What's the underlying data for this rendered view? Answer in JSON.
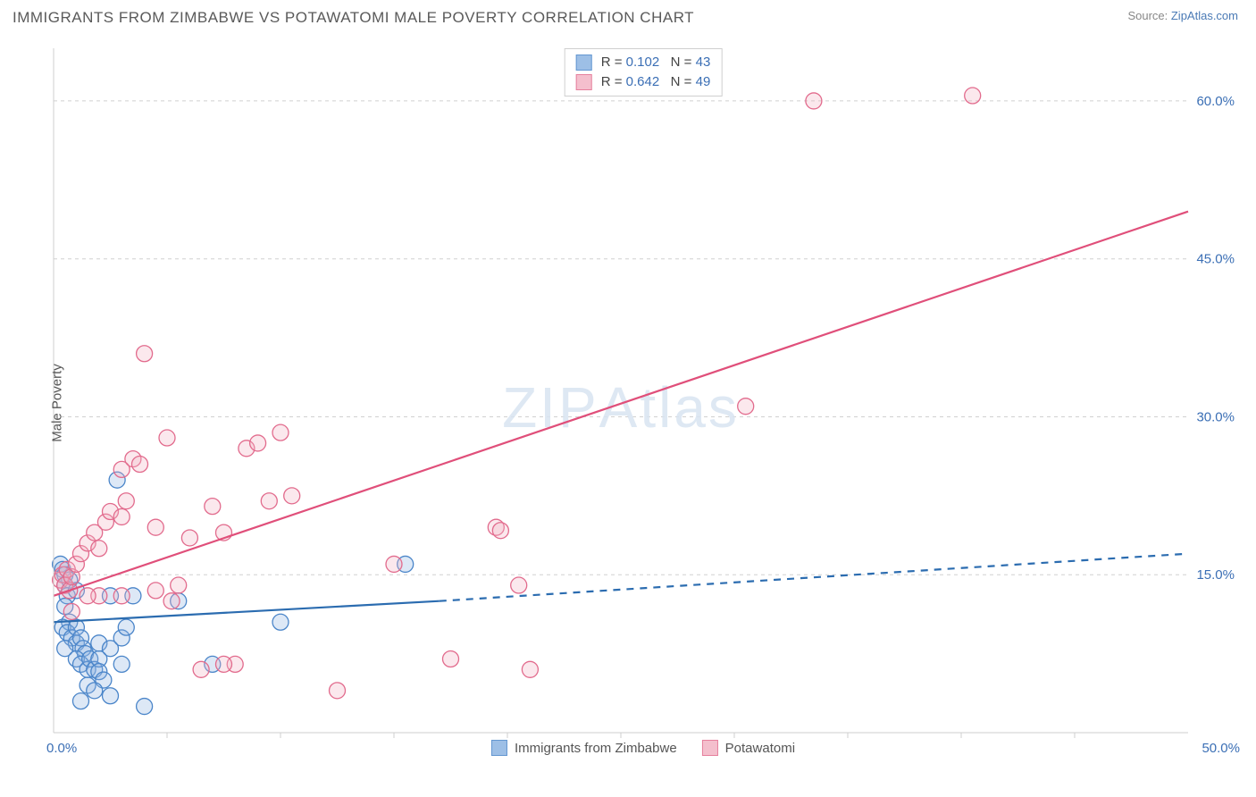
{
  "header": {
    "title": "IMMIGRANTS FROM ZIMBABWE VS POTAWATOMI MALE POVERTY CORRELATION CHART",
    "source_prefix": "Source: ",
    "source_link": "ZipAtlas.com"
  },
  "chart": {
    "type": "scatter",
    "ylabel": "Male Poverty",
    "watermark_bold": "ZIP",
    "watermark_thin": "Atlas",
    "background_color": "#ffffff",
    "grid_color": "#d0d0d0",
    "axis_color": "#cfcfcf",
    "tick_label_color": "#3b6fb5",
    "xlim": [
      0,
      50
    ],
    "ylim": [
      0,
      65
    ],
    "yticks": [
      15,
      30,
      45,
      60
    ],
    "ytick_labels": [
      "15.0%",
      "30.0%",
      "45.0%",
      "60.0%"
    ],
    "xtick_origin": "0.0%",
    "xtick_max": "50.0%",
    "x_minor_tick_step": 5,
    "marker_radius": 9,
    "marker_fill_opacity": 0.3,
    "marker_stroke_width": 1.3,
    "series": [
      {
        "key": "zimbabwe",
        "label": "Immigrants from Zimbabwe",
        "color_fill": "#8db4e2",
        "color_stroke": "#4a85c9",
        "line_color": "#2b6cb0",
        "line_width": 2.2,
        "regression": {
          "x1": 0,
          "y1": 10.5,
          "x2": 17,
          "y2": 12.5,
          "dash_to_x": 50,
          "dash_to_y": 17.0
        },
        "points": [
          [
            0.3,
            16
          ],
          [
            0.4,
            15.5
          ],
          [
            0.5,
            15
          ],
          [
            0.5,
            14
          ],
          [
            0.6,
            13
          ],
          [
            0.7,
            14.5
          ],
          [
            0.5,
            12
          ],
          [
            0.7,
            10.5
          ],
          [
            0.4,
            10
          ],
          [
            0.6,
            9.5
          ],
          [
            0.8,
            9
          ],
          [
            1.0,
            8.5
          ],
          [
            1.0,
            10
          ],
          [
            1.2,
            9
          ],
          [
            1.3,
            8
          ],
          [
            1.4,
            7.5
          ],
          [
            1.0,
            7
          ],
          [
            1.2,
            6.5
          ],
          [
            1.5,
            6
          ],
          [
            1.6,
            7
          ],
          [
            1.8,
            6
          ],
          [
            2.0,
            7
          ],
          [
            2.0,
            5.8
          ],
          [
            2.2,
            5
          ],
          [
            1.5,
            4.5
          ],
          [
            1.8,
            4
          ],
          [
            2.5,
            3.5
          ],
          [
            1.2,
            3
          ],
          [
            2.0,
            8.5
          ],
          [
            2.5,
            8
          ],
          [
            3.0,
            9
          ],
          [
            3.2,
            10
          ],
          [
            3.5,
            13
          ],
          [
            4.0,
            2.5
          ],
          [
            2.8,
            24
          ],
          [
            5.5,
            12.5
          ],
          [
            7.0,
            6.5
          ],
          [
            10.0,
            10.5
          ],
          [
            15.5,
            16
          ],
          [
            3.0,
            6.5
          ],
          [
            1.0,
            13.5
          ],
          [
            0.5,
            8
          ],
          [
            2.5,
            13
          ]
        ]
      },
      {
        "key": "potawatomi",
        "label": "Potawatomi",
        "color_fill": "#f3b4c5",
        "color_stroke": "#e26b8d",
        "line_color": "#e04f7a",
        "line_width": 2.2,
        "regression": {
          "x1": 0,
          "y1": 13.0,
          "x2": 50,
          "y2": 49.5
        },
        "points": [
          [
            0.3,
            14.5
          ],
          [
            0.4,
            15
          ],
          [
            0.5,
            14
          ],
          [
            0.6,
            15.5
          ],
          [
            0.7,
            13.5
          ],
          [
            0.8,
            14.8
          ],
          [
            1.0,
            16
          ],
          [
            1.2,
            17
          ],
          [
            1.5,
            18
          ],
          [
            1.8,
            19
          ],
          [
            2.0,
            17.5
          ],
          [
            2.3,
            20
          ],
          [
            2.5,
            21
          ],
          [
            3.0,
            20.5
          ],
          [
            3.0,
            25
          ],
          [
            3.2,
            22
          ],
          [
            3.5,
            26
          ],
          [
            3.8,
            25.5
          ],
          [
            4.0,
            36
          ],
          [
            4.5,
            19.5
          ],
          [
            5.0,
            28
          ],
          [
            5.2,
            12.5
          ],
          [
            5.5,
            14
          ],
          [
            6.0,
            18.5
          ],
          [
            6.5,
            6
          ],
          [
            7.0,
            21.5
          ],
          [
            7.5,
            19
          ],
          [
            8.0,
            6.5
          ],
          [
            8.5,
            27
          ],
          [
            9.0,
            27.5
          ],
          [
            9.5,
            22
          ],
          [
            10.0,
            28.5
          ],
          [
            10.5,
            22.5
          ],
          [
            7.5,
            6.5
          ],
          [
            12.5,
            4
          ],
          [
            15.0,
            16
          ],
          [
            17.5,
            7
          ],
          [
            19.5,
            19.5
          ],
          [
            19.7,
            19.2
          ],
          [
            20.5,
            14
          ],
          [
            21.0,
            6
          ],
          [
            30.5,
            31
          ],
          [
            33.5,
            60
          ],
          [
            40.5,
            60.5
          ],
          [
            3.0,
            13
          ],
          [
            4.5,
            13.5
          ],
          [
            2.0,
            13
          ],
          [
            0.8,
            11.5
          ],
          [
            1.5,
            13
          ]
        ]
      }
    ],
    "legend_top": {
      "rows": [
        {
          "swatch_fill": "#8db4e2",
          "swatch_stroke": "#4a85c9",
          "r_label": "R = ",
          "r_value": "0.102",
          "n_label": "   N = ",
          "n_value": "43"
        },
        {
          "swatch_fill": "#f3b4c5",
          "swatch_stroke": "#e26b8d",
          "r_label": "R = ",
          "r_value": "0.642",
          "n_label": "   N = ",
          "n_value": "49"
        }
      ]
    }
  }
}
